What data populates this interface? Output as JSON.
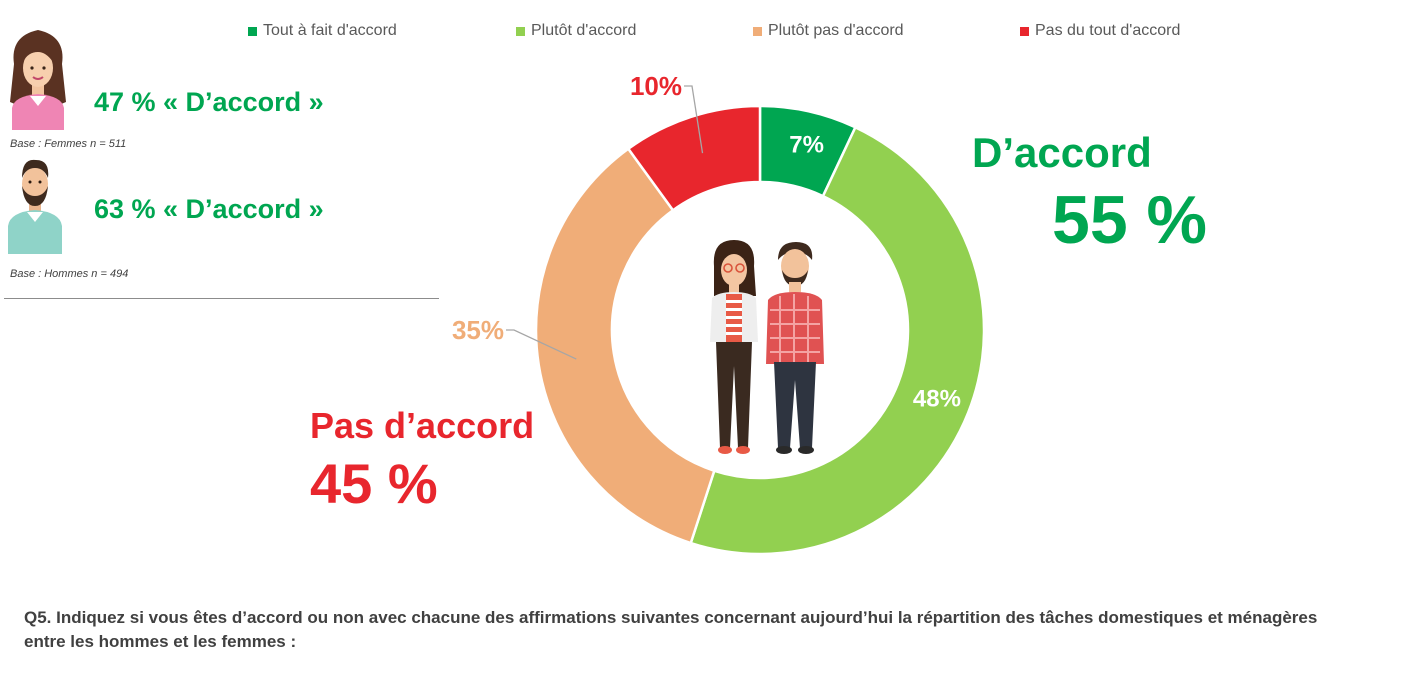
{
  "legend": [
    {
      "label": "Tout à fait d'accord",
      "color": "#00A651"
    },
    {
      "label": "Plutôt d'accord",
      "color": "#92D050"
    },
    {
      "label": "Plutôt pas d'accord",
      "color": "#F0AD78"
    },
    {
      "label": "Pas du tout d'accord",
      "color": "#E8262D"
    }
  ],
  "women": {
    "stat": "47 % « D’accord »",
    "base": "Base : Femmes n = 511",
    "icon": "woman-avatar-icon"
  },
  "men": {
    "stat": "63 % «  D’accord »",
    "base": "Base : Hommes n = 494",
    "icon": "man-avatar-icon"
  },
  "summary": {
    "agree_label": "D’accord",
    "agree_value": "55 %",
    "disagree_label": "Pas d’accord",
    "disagree_value": "45 %"
  },
  "chart_data": {
    "type": "pie",
    "series": [
      {
        "name": "Tout à fait d'accord",
        "value": 7,
        "label": "7%",
        "color": "#00A651"
      },
      {
        "name": "Plutôt d'accord",
        "value": 48,
        "label": "48%",
        "color": "#92D050"
      },
      {
        "name": "Plutôt pas d'accord",
        "value": 35,
        "label": "35%",
        "color": "#F0AD78"
      },
      {
        "name": "Pas du tout d'accord",
        "value": 10,
        "label": "10%",
        "color": "#E8262D"
      }
    ],
    "legend_position": "top"
  },
  "center_icon": "couple-illustration-icon",
  "question": "Q5. Indiquez si vous êtes d’accord ou non avec chacune des affirmations suivantes concernant aujourd’hui la répartition des tâches domestiques et ménagères entre les hommes et les femmes :"
}
